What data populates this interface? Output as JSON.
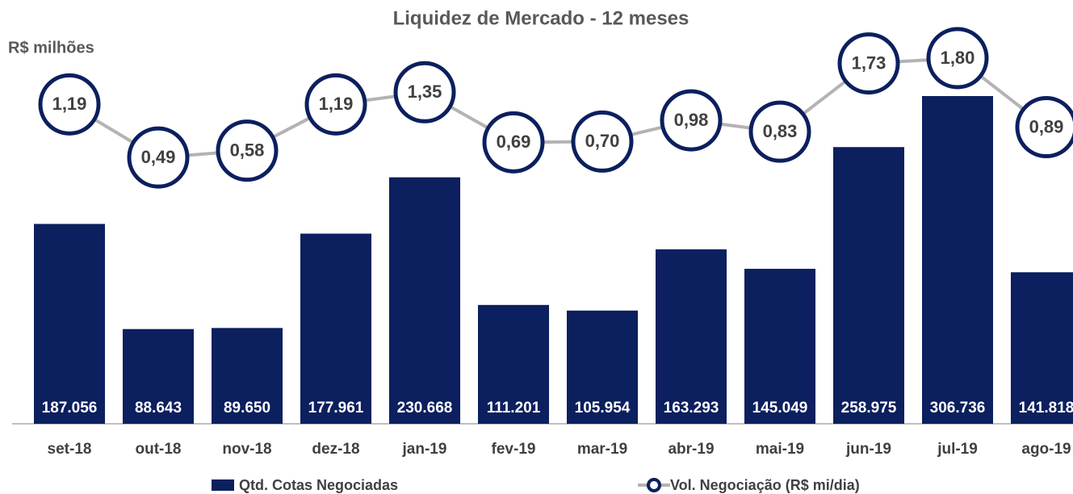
{
  "chart_data": {
    "type": "bar",
    "title": "Liquidez de Mercado - 12 meses",
    "y2_label": "R$ milhões",
    "categories": [
      "set-18",
      "out-18",
      "nov-18",
      "dez-18",
      "jan-19",
      "fev-19",
      "mar-19",
      "abr-19",
      "mai-19",
      "jun-19",
      "jul-19",
      "ago-19"
    ],
    "series": [
      {
        "name": "Qtd. Cotas Negociadas",
        "type": "bar",
        "color": "#0c1f5e",
        "values": [
          187056,
          88643,
          89650,
          177961,
          230668,
          111201,
          105954,
          163293,
          145049,
          258975,
          306736,
          141818
        ],
        "value_labels": [
          "187.056",
          "88.643",
          "89.650",
          "177.961",
          "230.668",
          "111.201",
          "105.954",
          "163.293",
          "145.049",
          "258.975",
          "306.736",
          "141.818"
        ]
      },
      {
        "name": "Vol. Negociação (R$ mi/dia)",
        "type": "line",
        "axis": "y2",
        "color": "#b3b3b3",
        "marker_color": "#0c1f5e",
        "values": [
          1.19,
          0.49,
          0.58,
          1.19,
          1.35,
          0.69,
          0.7,
          0.98,
          0.83,
          1.73,
          1.8,
          0.89
        ],
        "value_labels": [
          "1,19",
          "0,49",
          "0,58",
          "1,19",
          "1,35",
          "0,69",
          "0,70",
          "0,98",
          "0,83",
          "1,73",
          "1,80",
          "0,89"
        ]
      }
    ],
    "legend": "bottom"
  }
}
